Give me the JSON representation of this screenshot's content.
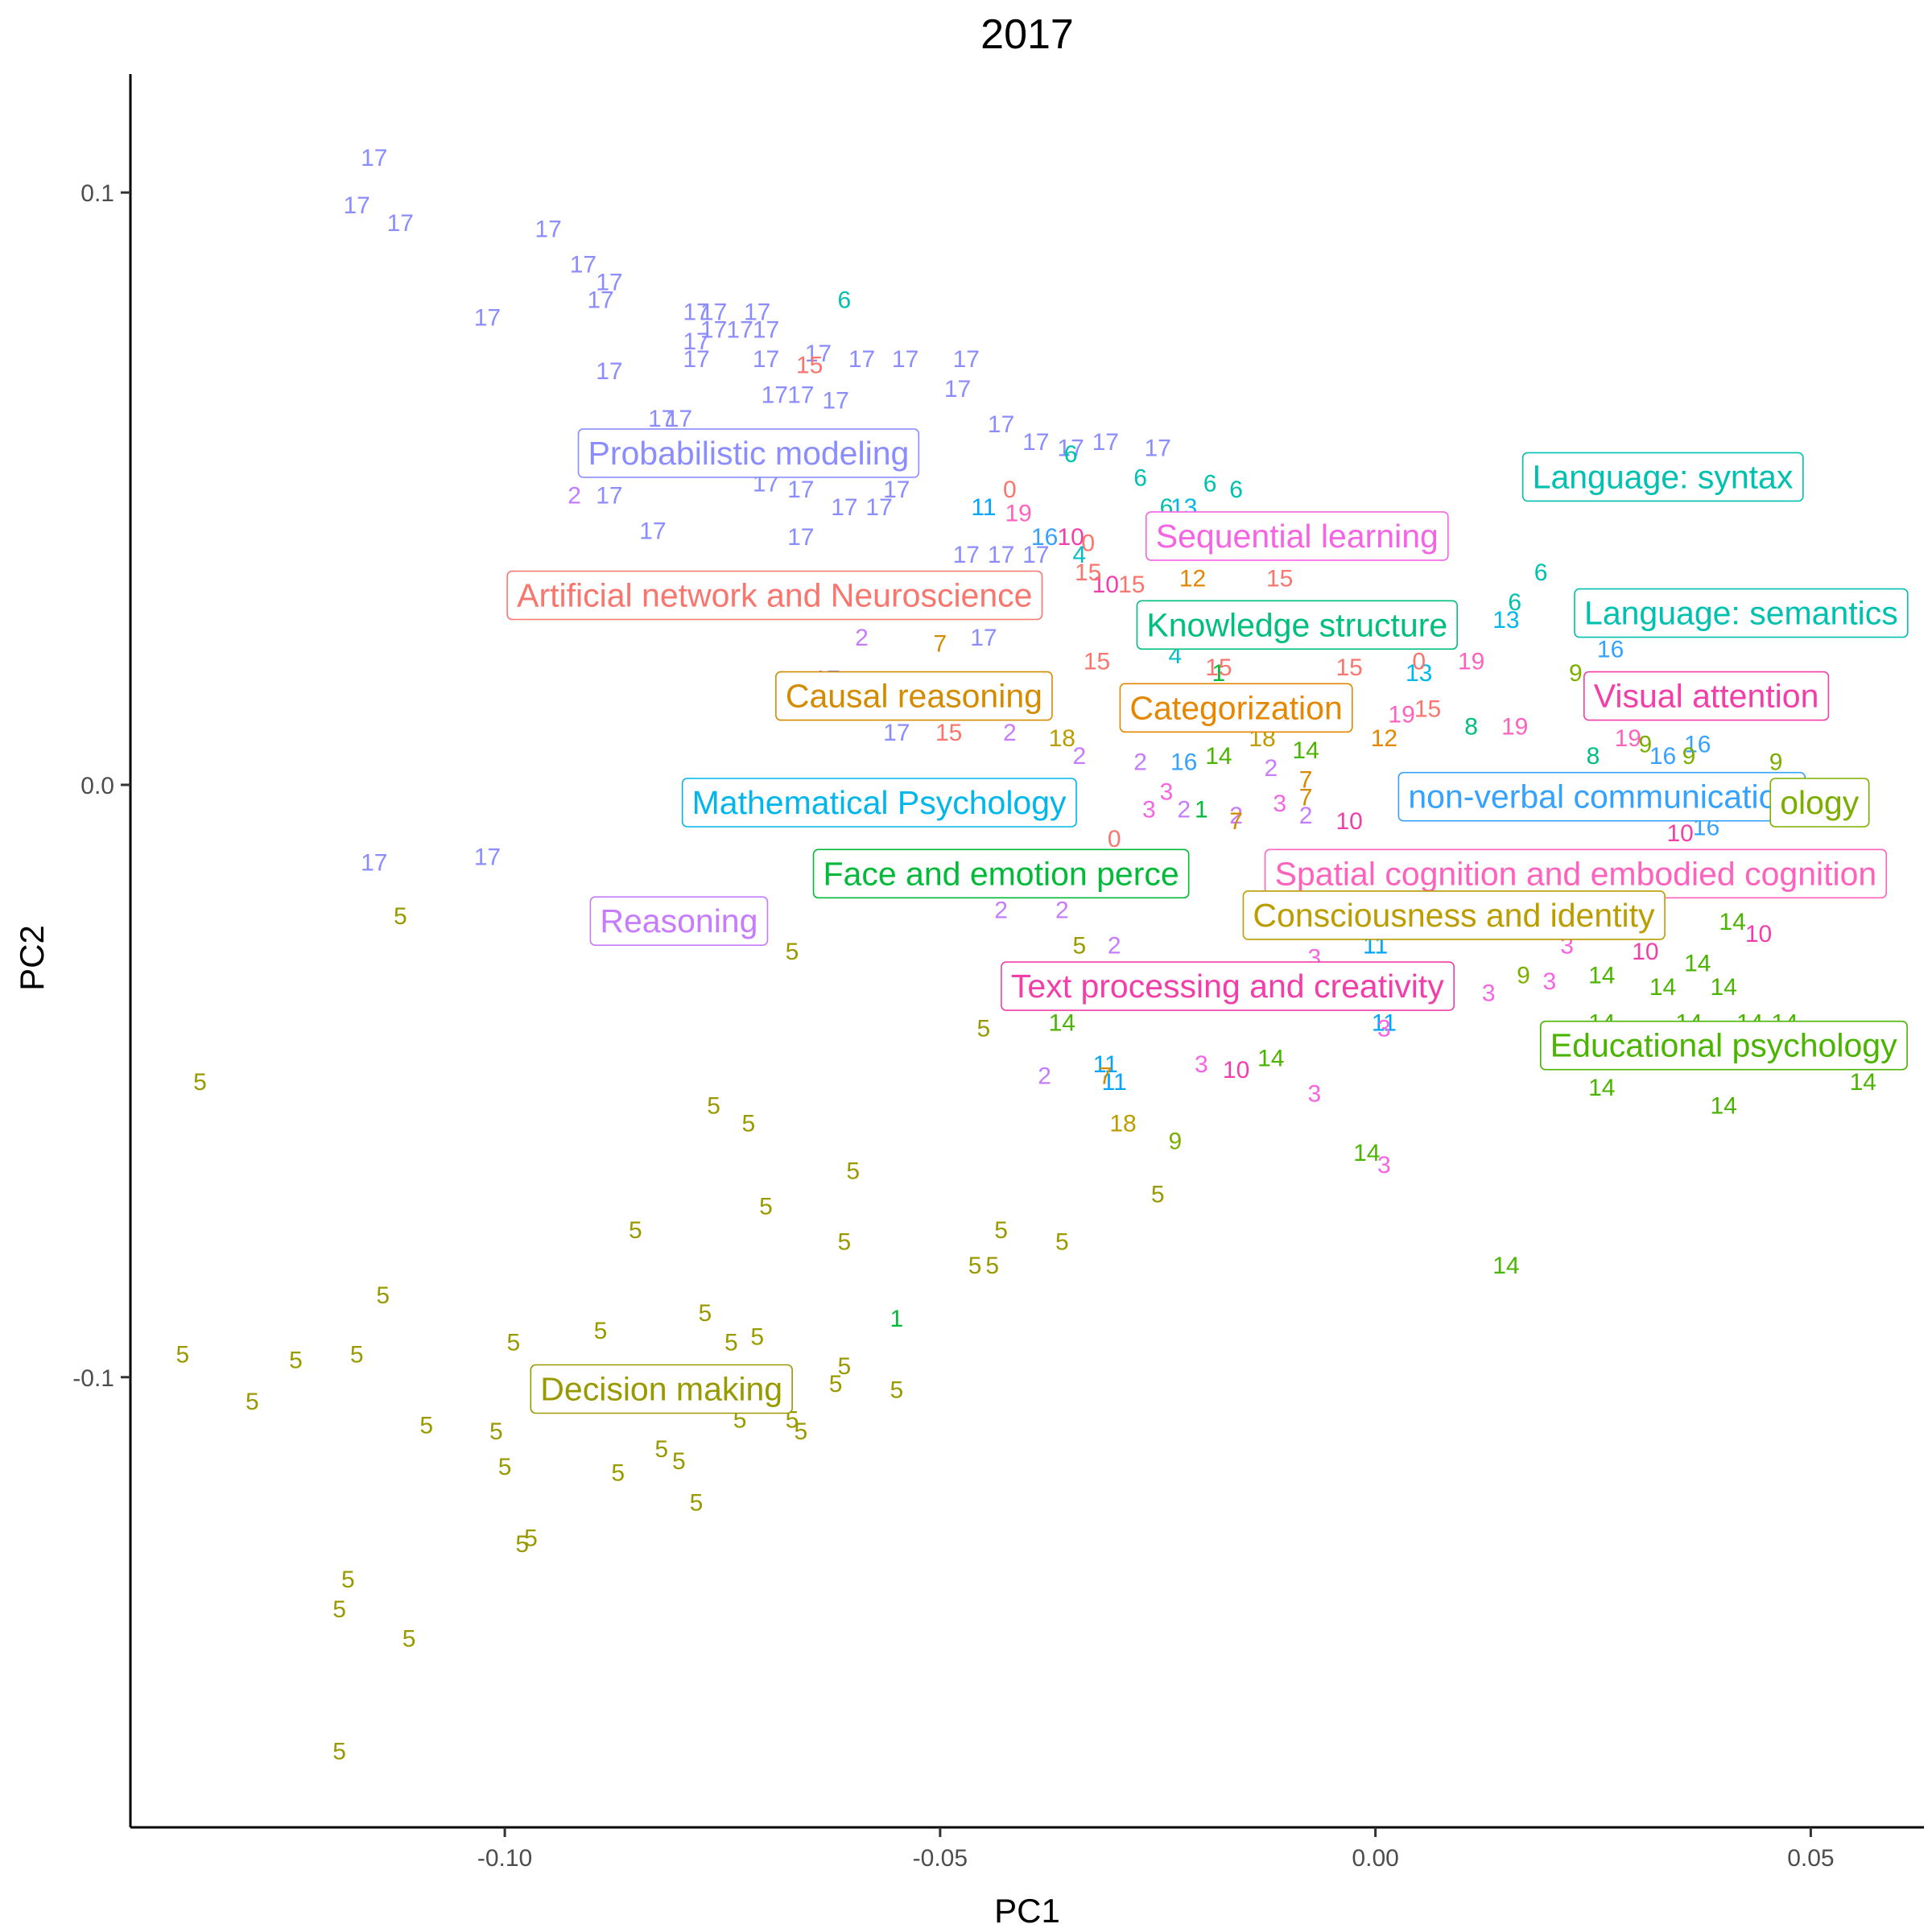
{
  "chart_data": {
    "type": "scatter",
    "title": "2017",
    "xlabel": "PC1",
    "ylabel": "PC2",
    "xlim": [
      -0.143,
      0.063
    ],
    "ylim": [
      -0.176,
      0.12
    ],
    "x_ticks": [
      -0.1,
      -0.05,
      0.0,
      0.05
    ],
    "x_tick_labels": [
      "-0.10",
      "-0.05",
      "0.00",
      "0.05"
    ],
    "y_ticks": [
      -0.1,
      0.0,
      0.1
    ],
    "y_tick_labels": [
      "-0.1",
      "0.0",
      "0.1"
    ],
    "grid": false,
    "legend": "none",
    "clusters": [
      {
        "id": "0",
        "color": "#F8766D"
      },
      {
        "id": "1",
        "color": "#00BA38"
      },
      {
        "id": "2",
        "color": "#C77CFF"
      },
      {
        "id": "3",
        "color": "#F564E3"
      },
      {
        "id": "4",
        "color": "#00BFC4"
      },
      {
        "id": "5",
        "color": "#999900"
      },
      {
        "id": "6",
        "color": "#00C0AF"
      },
      {
        "id": "7",
        "color": "#D38C00"
      },
      {
        "id": "8",
        "color": "#00BF7D"
      },
      {
        "id": "9",
        "color": "#7CAE00"
      },
      {
        "id": "10",
        "color": "#F23EA8"
      },
      {
        "id": "11",
        "color": "#00A5FF"
      },
      {
        "id": "12",
        "color": "#E58700"
      },
      {
        "id": "13",
        "color": "#00B6EB"
      },
      {
        "id": "14",
        "color": "#4BB400"
      },
      {
        "id": "15",
        "color": "#F8766D"
      },
      {
        "id": "16",
        "color": "#35A2FF"
      },
      {
        "id": "17",
        "color": "#8B8DFF"
      },
      {
        "id": "18",
        "color": "#BB9D00"
      },
      {
        "id": "19",
        "color": "#FF62BC"
      }
    ],
    "points": [
      {
        "c": "17",
        "x": -0.115,
        "y": 0.106
      },
      {
        "c": "17",
        "x": -0.117,
        "y": 0.098
      },
      {
        "c": "17",
        "x": -0.112,
        "y": 0.095
      },
      {
        "c": "17",
        "x": -0.095,
        "y": 0.094
      },
      {
        "c": "17",
        "x": -0.091,
        "y": 0.088
      },
      {
        "c": "17",
        "x": -0.088,
        "y": 0.085
      },
      {
        "c": "17",
        "x": -0.089,
        "y": 0.082
      },
      {
        "c": "17",
        "x": -0.102,
        "y": 0.079
      },
      {
        "c": "17",
        "x": -0.078,
        "y": 0.08
      },
      {
        "c": "17",
        "x": -0.076,
        "y": 0.08
      },
      {
        "c": "17",
        "x": -0.071,
        "y": 0.08
      },
      {
        "c": "17",
        "x": -0.076,
        "y": 0.077
      },
      {
        "c": "17",
        "x": -0.073,
        "y": 0.077
      },
      {
        "c": "17",
        "x": -0.07,
        "y": 0.077
      },
      {
        "c": "17",
        "x": -0.078,
        "y": 0.075
      },
      {
        "c": "17",
        "x": -0.078,
        "y": 0.072
      },
      {
        "c": "17",
        "x": -0.07,
        "y": 0.072
      },
      {
        "c": "17",
        "x": -0.064,
        "y": 0.073
      },
      {
        "c": "17",
        "x": -0.059,
        "y": 0.072
      },
      {
        "c": "17",
        "x": -0.054,
        "y": 0.072
      },
      {
        "c": "17",
        "x": -0.047,
        "y": 0.072
      },
      {
        "c": "17",
        "x": -0.088,
        "y": 0.07
      },
      {
        "c": "17",
        "x": -0.048,
        "y": 0.067
      },
      {
        "c": "17",
        "x": -0.069,
        "y": 0.066
      },
      {
        "c": "17",
        "x": -0.066,
        "y": 0.066
      },
      {
        "c": "17",
        "x": -0.062,
        "y": 0.065
      },
      {
        "c": "17",
        "x": -0.082,
        "y": 0.062
      },
      {
        "c": "17",
        "x": -0.08,
        "y": 0.062
      },
      {
        "c": "17",
        "x": -0.043,
        "y": 0.061
      },
      {
        "c": "17",
        "x": -0.039,
        "y": 0.058
      },
      {
        "c": "17",
        "x": -0.035,
        "y": 0.057
      },
      {
        "c": "17",
        "x": -0.031,
        "y": 0.058
      },
      {
        "c": "17",
        "x": -0.025,
        "y": 0.057
      },
      {
        "c": "17",
        "x": -0.07,
        "y": 0.051
      },
      {
        "c": "17",
        "x": -0.066,
        "y": 0.05
      },
      {
        "c": "17",
        "x": -0.061,
        "y": 0.047
      },
      {
        "c": "17",
        "x": -0.057,
        "y": 0.047
      },
      {
        "c": "17",
        "x": -0.055,
        "y": 0.05
      },
      {
        "c": "17",
        "x": -0.088,
        "y": 0.049
      },
      {
        "c": "17",
        "x": -0.083,
        "y": 0.043
      },
      {
        "c": "17",
        "x": -0.066,
        "y": 0.042
      },
      {
        "c": "17",
        "x": -0.047,
        "y": 0.039
      },
      {
        "c": "17",
        "x": -0.043,
        "y": 0.039
      },
      {
        "c": "17",
        "x": -0.039,
        "y": 0.039
      },
      {
        "c": "17",
        "x": -0.063,
        "y": 0.018
      },
      {
        "c": "17",
        "x": -0.055,
        "y": 0.009
      },
      {
        "c": "17",
        "x": -0.115,
        "y": -0.013
      },
      {
        "c": "17",
        "x": -0.102,
        "y": -0.012
      },
      {
        "c": "17",
        "x": -0.045,
        "y": 0.025
      },
      {
        "c": "2",
        "x": -0.092,
        "y": 0.049
      },
      {
        "c": "2",
        "x": -0.059,
        "y": 0.025
      },
      {
        "c": "2",
        "x": -0.042,
        "y": 0.009
      },
      {
        "c": "2",
        "x": -0.034,
        "y": 0.005
      },
      {
        "c": "2",
        "x": -0.027,
        "y": 0.004
      },
      {
        "c": "2",
        "x": -0.022,
        "y": -0.004
      },
      {
        "c": "2",
        "x": -0.043,
        "y": -0.021
      },
      {
        "c": "2",
        "x": -0.036,
        "y": -0.021
      },
      {
        "c": "2",
        "x": -0.038,
        "y": -0.049
      },
      {
        "c": "2",
        "x": -0.03,
        "y": -0.027
      },
      {
        "c": "2",
        "x": -0.016,
        "y": -0.005
      },
      {
        "c": "2",
        "x": -0.012,
        "y": 0.003
      },
      {
        "c": "2",
        "x": -0.008,
        "y": -0.005
      },
      {
        "c": "6",
        "x": -0.061,
        "y": 0.082
      },
      {
        "c": "6",
        "x": -0.035,
        "y": 0.056
      },
      {
        "c": "6",
        "x": -0.027,
        "y": 0.052
      },
      {
        "c": "6",
        "x": -0.019,
        "y": 0.051
      },
      {
        "c": "6",
        "x": -0.016,
        "y": 0.05
      },
      {
        "c": "6",
        "x": -0.024,
        "y": 0.047
      },
      {
        "c": "6",
        "x": 0.019,
        "y": 0.036
      },
      {
        "c": "6",
        "x": 0.016,
        "y": 0.031
      },
      {
        "c": "13",
        "x": -0.022,
        "y": 0.047
      },
      {
        "c": "13",
        "x": 0.015,
        "y": 0.028
      },
      {
        "c": "13",
        "x": 0.005,
        "y": 0.019
      },
      {
        "c": "19",
        "x": -0.041,
        "y": 0.046
      },
      {
        "c": "19",
        "x": 0.003,
        "y": 0.012
      },
      {
        "c": "19",
        "x": 0.011,
        "y": 0.021
      },
      {
        "c": "19",
        "x": 0.016,
        "y": 0.01
      },
      {
        "c": "19",
        "x": 0.029,
        "y": 0.008
      },
      {
        "c": "11",
        "x": -0.045,
        "y": 0.047
      },
      {
        "c": "11",
        "x": -0.031,
        "y": -0.047
      },
      {
        "c": "11",
        "x": -0.03,
        "y": -0.05
      },
      {
        "c": "11",
        "x": 0.0,
        "y": -0.027
      },
      {
        "c": "11",
        "x": 0.001,
        "y": -0.04
      },
      {
        "c": "16",
        "x": -0.038,
        "y": 0.042
      },
      {
        "c": "16",
        "x": -0.022,
        "y": 0.004
      },
      {
        "c": "16",
        "x": 0.027,
        "y": 0.023
      },
      {
        "c": "16",
        "x": 0.033,
        "y": 0.005
      },
      {
        "c": "16",
        "x": 0.037,
        "y": 0.007
      },
      {
        "c": "16",
        "x": 0.038,
        "y": -0.007
      },
      {
        "c": "10",
        "x": -0.035,
        "y": 0.042
      },
      {
        "c": "10",
        "x": -0.031,
        "y": 0.034
      },
      {
        "c": "10",
        "x": -0.016,
        "y": -0.048
      },
      {
        "c": "10",
        "x": -0.003,
        "y": -0.006
      },
      {
        "c": "10",
        "x": 0.031,
        "y": -0.028
      },
      {
        "c": "10",
        "x": 0.035,
        "y": -0.008
      },
      {
        "c": "10",
        "x": 0.044,
        "y": -0.025
      },
      {
        "c": "0",
        "x": -0.042,
        "y": 0.05
      },
      {
        "c": "0",
        "x": -0.033,
        "y": 0.041
      },
      {
        "c": "0",
        "x": 0.005,
        "y": 0.021
      },
      {
        "c": "0",
        "x": -0.03,
        "y": -0.009
      },
      {
        "c": "15",
        "x": -0.065,
        "y": 0.071
      },
      {
        "c": "15",
        "x": -0.033,
        "y": 0.036
      },
      {
        "c": "15",
        "x": -0.028,
        "y": 0.034
      },
      {
        "c": "15",
        "x": -0.011,
        "y": 0.035
      },
      {
        "c": "15",
        "x": -0.018,
        "y": 0.02
      },
      {
        "c": "15",
        "x": -0.032,
        "y": 0.021
      },
      {
        "c": "15",
        "x": -0.049,
        "y": 0.009
      },
      {
        "c": "15",
        "x": -0.003,
        "y": 0.02
      },
      {
        "c": "15",
        "x": 0.006,
        "y": 0.013
      },
      {
        "c": "12",
        "x": -0.021,
        "y": 0.035
      },
      {
        "c": "12",
        "x": 0.001,
        "y": 0.008
      },
      {
        "c": "4",
        "x": -0.034,
        "y": 0.039
      },
      {
        "c": "4",
        "x": -0.023,
        "y": 0.022
      },
      {
        "c": "1",
        "x": -0.018,
        "y": 0.019
      },
      {
        "c": "1",
        "x": -0.02,
        "y": -0.004
      },
      {
        "c": "1",
        "x": -0.055,
        "y": -0.09
      },
      {
        "c": "1",
        "x": -0.009,
        "y": 0.012
      },
      {
        "c": "14",
        "x": -0.018,
        "y": 0.005
      },
      {
        "c": "14",
        "x": -0.008,
        "y": 0.006
      },
      {
        "c": "14",
        "x": -0.012,
        "y": -0.046
      },
      {
        "c": "14",
        "x": -0.001,
        "y": -0.062
      },
      {
        "c": "14",
        "x": 0.015,
        "y": -0.081
      },
      {
        "c": "14",
        "x": 0.026,
        "y": -0.032
      },
      {
        "c": "14",
        "x": 0.033,
        "y": -0.034
      },
      {
        "c": "14",
        "x": 0.037,
        "y": -0.03
      },
      {
        "c": "14",
        "x": 0.04,
        "y": -0.034
      },
      {
        "c": "14",
        "x": 0.041,
        "y": -0.023
      },
      {
        "c": "14",
        "x": 0.043,
        "y": -0.04
      },
      {
        "c": "14",
        "x": 0.026,
        "y": -0.04
      },
      {
        "c": "14",
        "x": 0.036,
        "y": -0.04
      },
      {
        "c": "14",
        "x": 0.026,
        "y": -0.051
      },
      {
        "c": "14",
        "x": 0.04,
        "y": -0.054
      },
      {
        "c": "14",
        "x": 0.056,
        "y": -0.05
      },
      {
        "c": "14",
        "x": 0.047,
        "y": -0.04
      },
      {
        "c": "14",
        "x": -0.036,
        "y": -0.04
      },
      {
        "c": "3",
        "x": -0.024,
        "y": -0.001
      },
      {
        "c": "3",
        "x": -0.026,
        "y": -0.004
      },
      {
        "c": "3",
        "x": -0.011,
        "y": -0.003
      },
      {
        "c": "3",
        "x": -0.007,
        "y": -0.029
      },
      {
        "c": "3",
        "x": -0.02,
        "y": -0.047
      },
      {
        "c": "3",
        "x": -0.007,
        "y": -0.052
      },
      {
        "c": "3",
        "x": 0.001,
        "y": -0.064
      },
      {
        "c": "3",
        "x": 0.001,
        "y": -0.041
      },
      {
        "c": "3",
        "x": 0.022,
        "y": -0.027
      },
      {
        "c": "3",
        "x": 0.02,
        "y": -0.033
      },
      {
        "c": "3",
        "x": 0.013,
        "y": -0.035
      },
      {
        "c": "7",
        "x": -0.05,
        "y": 0.024
      },
      {
        "c": "7",
        "x": -0.031,
        "y": -0.049
      },
      {
        "c": "7",
        "x": -0.008,
        "y": 0.001
      },
      {
        "c": "7",
        "x": -0.008,
        "y": -0.002
      },
      {
        "c": "7",
        "x": -0.016,
        "y": -0.006
      },
      {
        "c": "18",
        "x": -0.036,
        "y": 0.008
      },
      {
        "c": "18",
        "x": -0.029,
        "y": -0.057
      },
      {
        "c": "18",
        "x": -0.013,
        "y": 0.008
      },
      {
        "c": "9",
        "x": -0.023,
        "y": -0.06
      },
      {
        "c": "9",
        "x": 0.017,
        "y": -0.032
      },
      {
        "c": "9",
        "x": 0.023,
        "y": 0.019
      },
      {
        "c": "9",
        "x": 0.031,
        "y": 0.007
      },
      {
        "c": "9",
        "x": 0.036,
        "y": 0.005
      },
      {
        "c": "9",
        "x": 0.046,
        "y": 0.004
      },
      {
        "c": "8",
        "x": 0.011,
        "y": 0.01
      },
      {
        "c": "8",
        "x": 0.025,
        "y": 0.005
      },
      {
        "c": "5",
        "x": -0.112,
        "y": -0.022
      },
      {
        "c": "5",
        "x": -0.067,
        "y": -0.028
      },
      {
        "c": "5",
        "x": -0.135,
        "y": -0.05
      },
      {
        "c": "5",
        "x": -0.034,
        "y": -0.027
      },
      {
        "c": "5",
        "x": -0.045,
        "y": -0.041
      },
      {
        "c": "5",
        "x": -0.076,
        "y": -0.054
      },
      {
        "c": "5",
        "x": -0.072,
        "y": -0.057
      },
      {
        "c": "5",
        "x": -0.06,
        "y": -0.065
      },
      {
        "c": "5",
        "x": -0.07,
        "y": -0.071
      },
      {
        "c": "5",
        "x": -0.085,
        "y": -0.075
      },
      {
        "c": "5",
        "x": -0.061,
        "y": -0.077
      },
      {
        "c": "5",
        "x": -0.043,
        "y": -0.075
      },
      {
        "c": "5",
        "x": -0.036,
        "y": -0.077
      },
      {
        "c": "5",
        "x": -0.025,
        "y": -0.069
      },
      {
        "c": "5",
        "x": -0.046,
        "y": -0.081
      },
      {
        "c": "5",
        "x": -0.044,
        "y": -0.081
      },
      {
        "c": "5",
        "x": -0.114,
        "y": -0.086
      },
      {
        "c": "5",
        "x": -0.077,
        "y": -0.089
      },
      {
        "c": "5",
        "x": -0.089,
        "y": -0.092
      },
      {
        "c": "5",
        "x": -0.074,
        "y": -0.094
      },
      {
        "c": "5",
        "x": -0.071,
        "y": -0.093
      },
      {
        "c": "5",
        "x": -0.099,
        "y": -0.094
      },
      {
        "c": "5",
        "x": -0.137,
        "y": -0.096
      },
      {
        "c": "5",
        "x": -0.124,
        "y": -0.097
      },
      {
        "c": "5",
        "x": -0.117,
        "y": -0.096
      },
      {
        "c": "5",
        "x": -0.061,
        "y": -0.098
      },
      {
        "c": "5",
        "x": -0.062,
        "y": -0.101
      },
      {
        "c": "5",
        "x": -0.055,
        "y": -0.102
      },
      {
        "c": "5",
        "x": -0.129,
        "y": -0.104
      },
      {
        "c": "5",
        "x": -0.109,
        "y": -0.108
      },
      {
        "c": "5",
        "x": -0.101,
        "y": -0.109
      },
      {
        "c": "5",
        "x": -0.073,
        "y": -0.107
      },
      {
        "c": "5",
        "x": -0.067,
        "y": -0.107
      },
      {
        "c": "5",
        "x": -0.066,
        "y": -0.109
      },
      {
        "c": "5",
        "x": -0.082,
        "y": -0.112
      },
      {
        "c": "5",
        "x": -0.08,
        "y": -0.114
      },
      {
        "c": "5",
        "x": -0.1,
        "y": -0.115
      },
      {
        "c": "5",
        "x": -0.087,
        "y": -0.116
      },
      {
        "c": "5",
        "x": -0.078,
        "y": -0.121
      },
      {
        "c": "5",
        "x": -0.097,
        "y": -0.127
      },
      {
        "c": "5",
        "x": -0.098,
        "y": -0.128
      },
      {
        "c": "5",
        "x": -0.118,
        "y": -0.134
      },
      {
        "c": "5",
        "x": -0.119,
        "y": -0.139
      },
      {
        "c": "5",
        "x": -0.111,
        "y": -0.144
      },
      {
        "c": "5",
        "x": -0.119,
        "y": -0.163
      }
    ],
    "cluster_labels": [
      {
        "text": "Probabilistic modeling",
        "color": "#8B8DFF",
        "x": -0.072,
        "y": 0.056
      },
      {
        "text": "Language: syntax",
        "color": "#00C0AF",
        "x": 0.033,
        "y": 0.052
      },
      {
        "text": "Sequential learning",
        "color": "#F564E3",
        "x": -0.009,
        "y": 0.042
      },
      {
        "text": "Artificial network and Neuroscience",
        "color": "#F8766D",
        "x": -0.069,
        "y": 0.032
      },
      {
        "text": "Knowledge structure",
        "color": "#00BF7D",
        "x": -0.009,
        "y": 0.027
      },
      {
        "text": "Language: semantics",
        "color": "#00C0AF",
        "x": 0.042,
        "y": 0.029
      },
      {
        "text": "Causal reasoning",
        "color": "#D38C00",
        "x": -0.053,
        "y": 0.015
      },
      {
        "text": "Categorization",
        "color": "#E58700",
        "x": -0.016,
        "y": 0.013
      },
      {
        "text": "Visual attention",
        "color": "#F23EA8",
        "x": 0.038,
        "y": 0.015
      },
      {
        "text": "Mathematical Psychology",
        "color": "#00B6EB",
        "x": -0.057,
        "y": -0.003
      },
      {
        "text": "non-verbal communication",
        "color": "#35A2FF",
        "x": 0.026,
        "y": -0.002
      },
      {
        "text": "ology",
        "color": "#7CAE00",
        "x": 0.051,
        "y": -0.003
      },
      {
        "text": "Face and emotion perce",
        "color": "#00BA38",
        "x": -0.043,
        "y": -0.015
      },
      {
        "text": "Spatial cognition and embodied cognition",
        "color": "#FF62BC",
        "x": 0.023,
        "y": -0.015
      },
      {
        "text": "Reasoning",
        "color": "#C77CFF",
        "x": -0.08,
        "y": -0.023
      },
      {
        "text": "Consciousness and identity",
        "color": "#BB9D00",
        "x": 0.009,
        "y": -0.022
      },
      {
        "text": "Text processing and creativity",
        "color": "#F23EA8",
        "x": -0.017,
        "y": -0.034
      },
      {
        "text": "Educational psychology",
        "color": "#4BB400",
        "x": 0.04,
        "y": -0.044
      },
      {
        "text": "Decision making",
        "color": "#999900",
        "x": -0.082,
        "y": -0.102
      }
    ]
  }
}
